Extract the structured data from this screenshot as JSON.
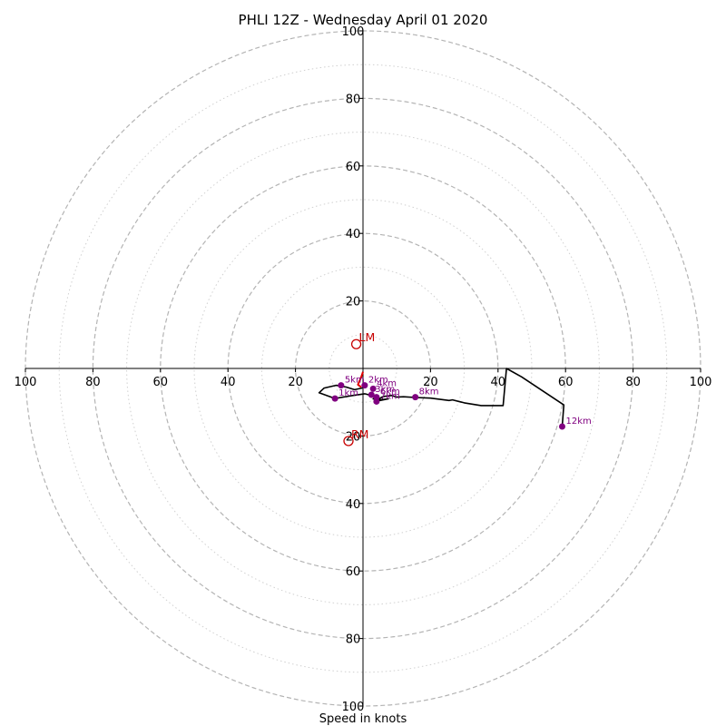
{
  "chart_data": {
    "type": "hodograph",
    "title": "PHLI 12Z - Wednesday April 01 2020",
    "xlabel": "Speed in knots",
    "units": "knots",
    "range": [
      -100,
      100
    ],
    "rings_major": [
      20,
      40,
      60,
      80,
      100
    ],
    "rings_minor": [
      10,
      30,
      50,
      70,
      90
    ],
    "x_tick_labels": [
      {
        "v": -100,
        "label": "100"
      },
      {
        "v": -80,
        "label": "80"
      },
      {
        "v": -60,
        "label": "60"
      },
      {
        "v": -40,
        "label": "40"
      },
      {
        "v": -20,
        "label": "20"
      },
      {
        "v": 20,
        "label": "20"
      },
      {
        "v": 40,
        "label": "40"
      },
      {
        "v": 60,
        "label": "60"
      },
      {
        "v": 80,
        "label": "80"
      },
      {
        "v": 100,
        "label": "100"
      }
    ],
    "y_tick_labels": [
      {
        "v": 100,
        "label": "100"
      },
      {
        "v": 80,
        "label": "80"
      },
      {
        "v": 60,
        "label": "60"
      },
      {
        "v": 40,
        "label": "40"
      },
      {
        "v": 20,
        "label": "20"
      },
      {
        "v": -20,
        "label": "20"
      },
      {
        "v": -40,
        "label": "40"
      },
      {
        "v": -60,
        "label": "60"
      },
      {
        "v": -80,
        "label": "80"
      },
      {
        "v": -100,
        "label": "100"
      }
    ],
    "grid": true,
    "colors": {
      "trace": "#000000",
      "lowlevel": "#e00000",
      "markers": "#800080",
      "motion": "#c80000",
      "ring_major": "#b4b4b4",
      "ring_minor": "#d0d0d0"
    },
    "hodograph_trace": [
      [
        0.5,
        -5
      ],
      [
        -0.3,
        -5.8
      ],
      [
        -2.5,
        -6.3
      ],
      [
        -5,
        -5.5
      ],
      [
        -8,
        -5
      ],
      [
        -11.5,
        -5.8
      ],
      [
        -13,
        -7.2
      ],
      [
        -8.3,
        -8.9
      ],
      [
        -3,
        -8
      ],
      [
        0.5,
        -7.5
      ],
      [
        2.5,
        -8
      ],
      [
        3.5,
        -8.5
      ],
      [
        3,
        -9
      ],
      [
        5,
        -9.5
      ],
      [
        7.5,
        -9
      ],
      [
        4,
        -9.4
      ],
      [
        6,
        -8.3
      ],
      [
        8.5,
        -8
      ],
      [
        10,
        -8.5
      ],
      [
        12,
        -8.4
      ],
      [
        15.5,
        -8.6
      ],
      [
        20,
        -8.8
      ],
      [
        25.5,
        -9.5
      ],
      [
        26.5,
        -9.3
      ],
      [
        30,
        -10.2
      ],
      [
        35,
        -11
      ],
      [
        41.5,
        -11
      ],
      [
        42.5,
        0
      ],
      [
        47,
        -2.5
      ],
      [
        59.5,
        -10.8
      ],
      [
        59,
        -17.2
      ]
    ],
    "lowlevel_trace": [
      [
        0,
        -1
      ],
      [
        -0.5,
        -2.5
      ],
      [
        -1.5,
        -4.8
      ],
      [
        -1,
        -5.2
      ],
      [
        -0.5,
        -5.5
      ]
    ],
    "km_markers": [
      {
        "label": "1km",
        "u": -8.3,
        "v": -8.9
      },
      {
        "label": "2km",
        "u": 0.5,
        "v": -5
      },
      {
        "label": "3km",
        "u": 2.5,
        "v": -7.8
      },
      {
        "label": "4km",
        "u": 3,
        "v": -6
      },
      {
        "label": "5km",
        "u": -6.5,
        "v": -5
      },
      {
        "label": "6km",
        "u": 4,
        "v": -8.5
      },
      {
        "label": "7km",
        "u": 4,
        "v": -9.8
      },
      {
        "label": "8km",
        "u": 15.5,
        "v": -8.5
      },
      {
        "label": "12km",
        "u": 59,
        "v": -17.2
      }
    ],
    "storm_motion": [
      {
        "label": "LM",
        "u": -2,
        "v": 7.2
      },
      {
        "label": "RM",
        "u": -4.3,
        "v": -21.5
      }
    ]
  }
}
